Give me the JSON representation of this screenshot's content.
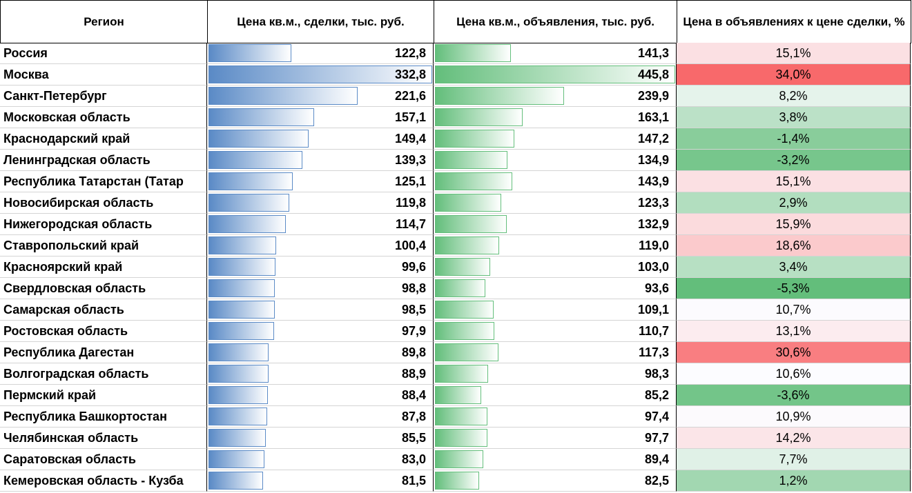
{
  "table": {
    "columns": [
      "Регион",
      "Цена кв.м., сделки, тыс. руб.",
      "Цена кв.м., объявления, тыс. руб.",
      "Цена в объявлениях к цене сделки, %"
    ],
    "rows": [
      {
        "region": "Россия",
        "deal": 122.8,
        "deal_label": "122,8",
        "ask": 141.3,
        "ask_label": "141,3",
        "ratio": 15.1,
        "ratio_label": "15,1%"
      },
      {
        "region": "Москва",
        "deal": 332.8,
        "deal_label": "332,8",
        "ask": 445.8,
        "ask_label": "445,8",
        "ratio": 34.0,
        "ratio_label": "34,0%"
      },
      {
        "region": "Санкт-Петербург",
        "deal": 221.6,
        "deal_label": "221,6",
        "ask": 239.9,
        "ask_label": "239,9",
        "ratio": 8.2,
        "ratio_label": "8,2%"
      },
      {
        "region": "Московская область",
        "deal": 157.1,
        "deal_label": "157,1",
        "ask": 163.1,
        "ask_label": "163,1",
        "ratio": 3.8,
        "ratio_label": "3,8%"
      },
      {
        "region": "Краснодарский край",
        "deal": 149.4,
        "deal_label": "149,4",
        "ask": 147.2,
        "ask_label": "147,2",
        "ratio": -1.4,
        "ratio_label": "-1,4%"
      },
      {
        "region": "Ленинградская область",
        "deal": 139.3,
        "deal_label": "139,3",
        "ask": 134.9,
        "ask_label": "134,9",
        "ratio": -3.2,
        "ratio_label": "-3,2%"
      },
      {
        "region": "Республика Татарстан (Татар",
        "deal": 125.1,
        "deal_label": "125,1",
        "ask": 143.9,
        "ask_label": "143,9",
        "ratio": 15.1,
        "ratio_label": "15,1%"
      },
      {
        "region": "Новосибирская область",
        "deal": 119.8,
        "deal_label": "119,8",
        "ask": 123.3,
        "ask_label": "123,3",
        "ratio": 2.9,
        "ratio_label": "2,9%"
      },
      {
        "region": "Нижегородская область",
        "deal": 114.7,
        "deal_label": "114,7",
        "ask": 132.9,
        "ask_label": "132,9",
        "ratio": 15.9,
        "ratio_label": "15,9%"
      },
      {
        "region": "Ставропольский край",
        "deal": 100.4,
        "deal_label": "100,4",
        "ask": 119.0,
        "ask_label": "119,0",
        "ratio": 18.6,
        "ratio_label": "18,6%"
      },
      {
        "region": "Красноярский край",
        "deal": 99.6,
        "deal_label": "99,6",
        "ask": 103.0,
        "ask_label": "103,0",
        "ratio": 3.4,
        "ratio_label": "3,4%"
      },
      {
        "region": "Свердловская область",
        "deal": 98.8,
        "deal_label": "98,8",
        "ask": 93.6,
        "ask_label": "93,6",
        "ratio": -5.3,
        "ratio_label": "-5,3%"
      },
      {
        "region": "Самарская область",
        "deal": 98.5,
        "deal_label": "98,5",
        "ask": 109.1,
        "ask_label": "109,1",
        "ratio": 10.7,
        "ratio_label": "10,7%"
      },
      {
        "region": "Ростовская область",
        "deal": 97.9,
        "deal_label": "97,9",
        "ask": 110.7,
        "ask_label": "110,7",
        "ratio": 13.1,
        "ratio_label": "13,1%"
      },
      {
        "region": "Республика Дагестан",
        "deal": 89.8,
        "deal_label": "89,8",
        "ask": 117.3,
        "ask_label": "117,3",
        "ratio": 30.6,
        "ratio_label": "30,6%"
      },
      {
        "region": "Волгоградская область",
        "deal": 88.9,
        "deal_label": "88,9",
        "ask": 98.3,
        "ask_label": "98,3",
        "ratio": 10.6,
        "ratio_label": "10,6%"
      },
      {
        "region": "Пермский край",
        "deal": 88.4,
        "deal_label": "88,4",
        "ask": 85.2,
        "ask_label": "85,2",
        "ratio": -3.6,
        "ratio_label": "-3,6%"
      },
      {
        "region": "Республика Башкортостан",
        "deal": 87.8,
        "deal_label": "87,8",
        "ask": 97.4,
        "ask_label": "97,4",
        "ratio": 10.9,
        "ratio_label": "10,9%"
      },
      {
        "region": "Челябинская область",
        "deal": 85.5,
        "deal_label": "85,5",
        "ask": 97.7,
        "ask_label": "97,7",
        "ratio": 14.2,
        "ratio_label": "14,2%"
      },
      {
        "region": "Саратовская область",
        "deal": 83.0,
        "deal_label": "83,0",
        "ask": 89.4,
        "ask_label": "89,4",
        "ratio": 7.7,
        "ratio_label": "7,7%"
      },
      {
        "region": "Кемеровская область - Кузба",
        "deal": 81.5,
        "deal_label": "81,5",
        "ask": 82.5,
        "ask_label": "82,5",
        "ratio": 1.2,
        "ratio_label": "1,2%"
      }
    ]
  }
}
